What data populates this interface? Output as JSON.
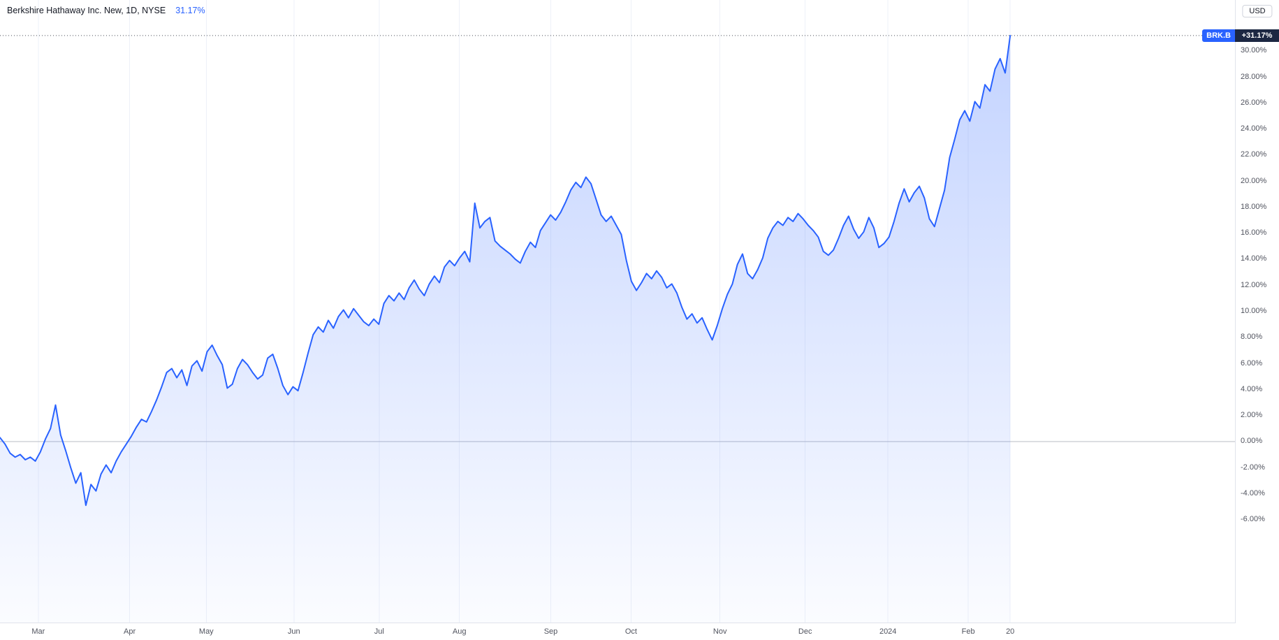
{
  "legend": {
    "title": "Berkshire Hathaway Inc. New, 1D, NYSE",
    "change": "31.17%"
  },
  "badge": {
    "symbol": "BRK.B",
    "value": "+31.17%"
  },
  "axis": {
    "currency": "USD"
  },
  "colors": {
    "line": "#2962FF",
    "fill_top": "rgba(41,98,255,0.28)",
    "fill_bottom": "rgba(41,98,255,0.02)",
    "grid": "#eef1f8",
    "zero_line": "#b8bcc6",
    "dotted_line": "#4a4e59",
    "axis_text": "#50535e",
    "legend_text": "#131722",
    "accent": "#2962FF",
    "symbol_chip_bg": "#2962FF",
    "price_chip_bg": "#1c2742",
    "axis_border": "#e0e3eb"
  },
  "chart_data": {
    "type": "area",
    "title": "Berkshire Hathaway Inc. New, 1D, NYSE",
    "symbol": "BRK.B",
    "interval": "1D",
    "exchange": "NYSE",
    "unit": "percent_change",
    "change_percent": 31.17,
    "ylim": [
      -13.9,
      33.9
    ],
    "x_end_fraction": 0.818,
    "y_ticks": [
      {
        "value": 30,
        "label": "30.00%"
      },
      {
        "value": 28,
        "label": "28.00%"
      },
      {
        "value": 26,
        "label": "26.00%"
      },
      {
        "value": 24,
        "label": "24.00%"
      },
      {
        "value": 22,
        "label": "22.00%"
      },
      {
        "value": 20,
        "label": "20.00%"
      },
      {
        "value": 18,
        "label": "18.00%"
      },
      {
        "value": 16,
        "label": "16.00%"
      },
      {
        "value": 14,
        "label": "14.00%"
      },
      {
        "value": 12,
        "label": "12.00%"
      },
      {
        "value": 10,
        "label": "10.00%"
      },
      {
        "value": 8,
        "label": "8.00%"
      },
      {
        "value": 6,
        "label": "6.00%"
      },
      {
        "value": 4,
        "label": "4.00%"
      },
      {
        "value": 2,
        "label": "2.00%"
      },
      {
        "value": 0,
        "label": "0.00%"
      },
      {
        "value": -2,
        "label": "-2.00%"
      },
      {
        "value": -4,
        "label": "-4.00%"
      },
      {
        "value": -6,
        "label": "-6.00%"
      }
    ],
    "x_ticks": [
      {
        "pos": 0.031,
        "label": "Mar"
      },
      {
        "pos": 0.105,
        "label": "Apr"
      },
      {
        "pos": 0.167,
        "label": "May"
      },
      {
        "pos": 0.238,
        "label": "Jun"
      },
      {
        "pos": 0.307,
        "label": "Jul"
      },
      {
        "pos": 0.372,
        "label": "Aug"
      },
      {
        "pos": 0.446,
        "label": "Sep"
      },
      {
        "pos": 0.511,
        "label": "Oct"
      },
      {
        "pos": 0.583,
        "label": "Nov"
      },
      {
        "pos": 0.652,
        "label": "Dec"
      },
      {
        "pos": 0.719,
        "label": "2024"
      },
      {
        "pos": 0.784,
        "label": "Feb"
      },
      {
        "pos": 0.818,
        "label": "20"
      }
    ],
    "values": [
      0.3,
      -0.2,
      -0.9,
      -1.2,
      -1.0,
      -1.4,
      -1.2,
      -1.5,
      -0.8,
      0.2,
      1.0,
      2.8,
      0.5,
      -0.7,
      -2.0,
      -3.2,
      -2.4,
      -4.9,
      -3.3,
      -3.8,
      -2.5,
      -1.8,
      -2.4,
      -1.5,
      -0.8,
      -0.2,
      0.4,
      1.1,
      1.7,
      1.5,
      2.3,
      3.2,
      4.2,
      5.3,
      5.6,
      4.9,
      5.5,
      4.3,
      5.8,
      6.2,
      5.4,
      6.9,
      7.4,
      6.6,
      5.9,
      4.1,
      4.4,
      5.6,
      6.3,
      5.9,
      5.3,
      4.8,
      5.1,
      6.4,
      6.7,
      5.6,
      4.3,
      3.6,
      4.2,
      3.9,
      5.3,
      6.8,
      8.2,
      8.8,
      8.4,
      9.3,
      8.7,
      9.6,
      10.1,
      9.5,
      10.2,
      9.7,
      9.2,
      8.9,
      9.4,
      9.0,
      10.6,
      11.2,
      10.8,
      11.4,
      10.9,
      11.8,
      12.4,
      11.7,
      11.2,
      12.1,
      12.7,
      12.2,
      13.4,
      13.9,
      13.5,
      14.1,
      14.6,
      13.8,
      18.3,
      16.4,
      16.9,
      17.2,
      15.4,
      15.0,
      14.7,
      14.4,
      14.0,
      13.7,
      14.6,
      15.3,
      14.9,
      16.2,
      16.8,
      17.4,
      17.0,
      17.6,
      18.4,
      19.3,
      19.9,
      19.5,
      20.3,
      19.8,
      18.6,
      17.4,
      16.9,
      17.3,
      16.6,
      15.9,
      13.9,
      12.3,
      11.6,
      12.2,
      12.9,
      12.5,
      13.1,
      12.6,
      11.8,
      12.1,
      11.4,
      10.3,
      9.4,
      9.8,
      9.1,
      9.5,
      8.6,
      7.8,
      8.9,
      10.2,
      11.3,
      12.1,
      13.6,
      14.4,
      12.9,
      12.5,
      13.2,
      14.1,
      15.6,
      16.4,
      16.9,
      16.6,
      17.2,
      16.9,
      17.5,
      17.1,
      16.6,
      16.2,
      15.7,
      14.6,
      14.3,
      14.7,
      15.6,
      16.6,
      17.3,
      16.3,
      15.6,
      16.1,
      17.2,
      16.4,
      14.9,
      15.2,
      15.7,
      16.9,
      18.3,
      19.4,
      18.4,
      19.1,
      19.6,
      18.7,
      17.1,
      16.5,
      17.9,
      19.3,
      21.8,
      23.2,
      24.7,
      25.4,
      24.6,
      26.1,
      25.6,
      27.4,
      26.9,
      28.6,
      29.4,
      28.3,
      31.17
    ]
  }
}
